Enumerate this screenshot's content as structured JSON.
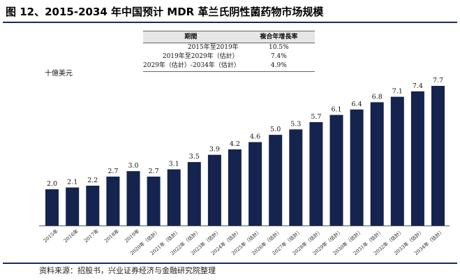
{
  "figure": {
    "title": "图 12、2015-2034 年中国预计 MDR 革兰氏阴性菌药物市场规模",
    "source": "资料来源：招股书，兴业证券经济与金融研究院整理"
  },
  "cagr_table": {
    "header": {
      "period": "期間",
      "rate": "複合年增長率"
    },
    "rows": [
      {
        "period": "2015年至2019年",
        "rate": "10.5%"
      },
      {
        "period": "2019年至2029年（估計）",
        "rate": "7.4%"
      },
      {
        "period": "2029年（估計）-2034年（估計）",
        "rate": "4.9%"
      }
    ]
  },
  "chart_data": {
    "type": "bar",
    "ylabel": "十億美元",
    "categories": [
      "2015年",
      "2016年",
      "2017年",
      "2018年",
      "2019年",
      "2020年（估計）",
      "2021年（估計）",
      "2022年（估計）",
      "2023年（估計）",
      "2024年（估計）",
      "2025年（估計）",
      "2026年（估計）",
      "2027年（估計）",
      "2028年（估計）",
      "2029年（估計）",
      "2030年（估計）",
      "2031年（估計）",
      "2032年（估計）",
      "2033年（估計）",
      "2034年（估計）"
    ],
    "values": [
      2.0,
      2.1,
      2.2,
      2.7,
      3.0,
      2.7,
      3.1,
      3.5,
      3.9,
      4.2,
      4.6,
      5.0,
      5.3,
      5.7,
      6.1,
      6.4,
      6.8,
      7.1,
      7.4,
      7.7
    ],
    "value_labels": [
      "2.0",
      "2.1",
      "2.2",
      "2.7",
      "3.0",
      "2.7",
      "3.1",
      "3.5",
      "3.9",
      "4.2",
      "4.6",
      "5.0",
      "5.3",
      "5.7",
      "6.1",
      "6.4",
      "6.8",
      "7.1",
      "7.4",
      "7.7"
    ],
    "ylim": [
      0,
      7.7
    ],
    "grid": false,
    "legend": "none",
    "bar_color": "#14244f"
  }
}
